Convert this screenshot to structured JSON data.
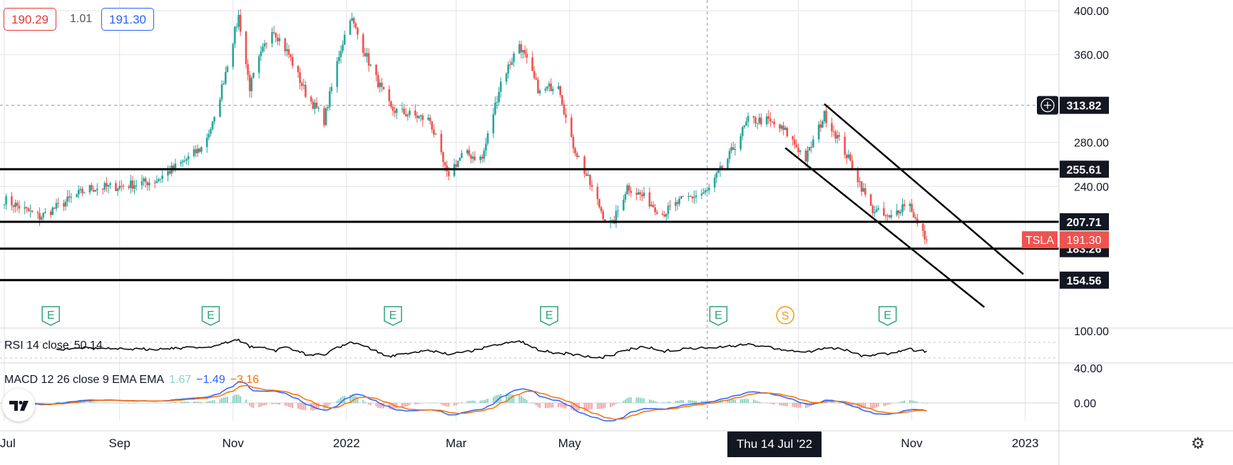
{
  "quote": {
    "bid": "190.29",
    "spread": "1.01",
    "ask": "191.30"
  },
  "colors": {
    "up": "#26a69a",
    "down": "#ef5350",
    "text": "#131722",
    "grid": "#e0e3eb",
    "macd": "#2962ff",
    "signal": "#ff6d00",
    "earnings": "#2ea37a",
    "split": "#f39c12"
  },
  "chart_data": [
    {
      "type": "candlestick",
      "symbol": "TSLA",
      "x_ticks": [
        "Jul",
        "Sep",
        "Nov",
        "2022",
        "Mar",
        "May",
        "Thu 14 Jul '22",
        "Sep",
        "Nov",
        "2023"
      ],
      "y_ticks": [
        "400.00",
        "360.00",
        "280.00",
        "240.00"
      ],
      "ylim": [
        100,
        400
      ],
      "anchors": [
        [
          "2021-07-01",
          228
        ],
        [
          "2021-07-20",
          212
        ],
        [
          "2021-08-15",
          238
        ],
        [
          "2021-09-01",
          240
        ],
        [
          "2021-09-20",
          245
        ],
        [
          "2021-10-05",
          262
        ],
        [
          "2021-10-15",
          275
        ],
        [
          "2021-10-22",
          300
        ],
        [
          "2021-10-28",
          345
        ],
        [
          "2021-11-04",
          395
        ],
        [
          "2021-11-10",
          330
        ],
        [
          "2021-11-15",
          355
        ],
        [
          "2021-11-22",
          385
        ],
        [
          "2021-12-01",
          360
        ],
        [
          "2021-12-10",
          325
        ],
        [
          "2021-12-20",
          300
        ],
        [
          "2021-12-28",
          360
        ],
        [
          "2022-01-03",
          395
        ],
        [
          "2022-01-15",
          345
        ],
        [
          "2022-01-25",
          310
        ],
        [
          "2022-02-05",
          305
        ],
        [
          "2022-02-15",
          300
        ],
        [
          "2022-02-24",
          250
        ],
        [
          "2022-03-05",
          270
        ],
        [
          "2022-03-15",
          265
        ],
        [
          "2022-03-25",
          335
        ],
        [
          "2022-04-04",
          370
        ],
        [
          "2022-04-15",
          325
        ],
        [
          "2022-04-25",
          335
        ],
        [
          "2022-05-01",
          285
        ],
        [
          "2022-05-10",
          250
        ],
        [
          "2022-05-20",
          210
        ],
        [
          "2022-05-24",
          205
        ],
        [
          "2022-06-01",
          240
        ],
        [
          "2022-06-10",
          230
        ],
        [
          "2022-06-20",
          215
        ],
        [
          "2022-07-01",
          228
        ],
        [
          "2022-07-14",
          235
        ],
        [
          "2022-07-25",
          265
        ],
        [
          "2022-08-05",
          300
        ],
        [
          "2022-08-15",
          300
        ],
        [
          "2022-08-25",
          290
        ],
        [
          "2022-09-05",
          265
        ],
        [
          "2022-09-15",
          305
        ],
        [
          "2022-09-22",
          285
        ],
        [
          "2022-10-01",
          255
        ],
        [
          "2022-10-10",
          220
        ],
        [
          "2022-10-20",
          210
        ],
        [
          "2022-10-30",
          228
        ],
        [
          "2022-11-04",
          205
        ],
        [
          "2022-11-09",
          191.3
        ]
      ],
      "horizontal_levels": [
        "313.82",
        "255.61",
        "207.71",
        "183.26",
        "154.56"
      ],
      "last_price": "191.30",
      "events": [
        {
          "date": "2021-07-26",
          "label": "E"
        },
        {
          "date": "2021-10-20",
          "label": "E"
        },
        {
          "date": "2022-01-26",
          "label": "E"
        },
        {
          "date": "2022-04-20",
          "label": "E"
        },
        {
          "date": "2022-07-20",
          "label": "E"
        },
        {
          "date": "2022-08-25",
          "label": "S"
        },
        {
          "date": "2022-10-19",
          "label": "E"
        }
      ],
      "trendlines": [
        {
          "from": [
            "2022-09-15",
            315
          ],
          "to": [
            "2022-12-31",
            160
          ]
        },
        {
          "from": [
            "2022-08-25",
            275
          ],
          "to": [
            "2022-12-10",
            130
          ]
        }
      ]
    },
    {
      "type": "line",
      "name": "RSI",
      "label": "RSI 14 close",
      "value": "50.14",
      "y_ticks": [
        "100.00"
      ]
    },
    {
      "type": "macd",
      "label": "MACD 12 26 close 9 EMA EMA",
      "values": {
        "histogram": "1.67",
        "macd": "−1.49",
        "signal": "−3.16"
      },
      "y_ticks": [
        "40.00",
        "0.00"
      ]
    }
  ]
}
